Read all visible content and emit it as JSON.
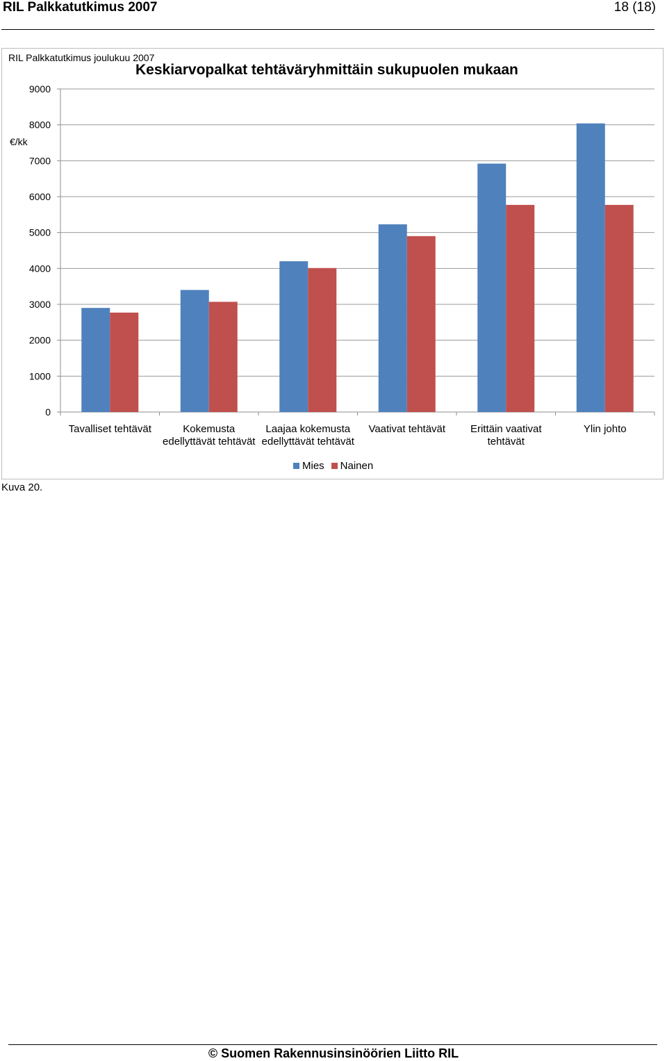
{
  "header": {
    "title": "RIL Palkkatutkimus 2007",
    "page": "18 (18)"
  },
  "chart_data": {
    "type": "bar",
    "source_note": "RIL Palkkatutkimus joulukuu 2007",
    "title": "Keskiarvopalkat tehtäväryhmittäin sukupuolen mukaan",
    "ylabel": "€/kk",
    "xlabel": "",
    "ylim": [
      0,
      9000
    ],
    "yticks": [
      0,
      1000,
      2000,
      3000,
      4000,
      5000,
      6000,
      7000,
      8000,
      9000
    ],
    "grid": true,
    "legend_position": "bottom-center",
    "categories": [
      [
        "Tavalliset tehtävät"
      ],
      [
        "Kokemusta",
        "edellyttävät tehtävät"
      ],
      [
        "Laajaa kokemusta",
        "edellyttävät tehtävät"
      ],
      [
        "Vaativat tehtävät"
      ],
      [
        "Erittäin vaativat",
        "tehtävät"
      ],
      [
        "Ylin johto"
      ]
    ],
    "series": [
      {
        "name": "Mies",
        "color": "#4f81bd",
        "values": [
          2900,
          3400,
          4200,
          5230,
          6920,
          8040
        ]
      },
      {
        "name": "Nainen",
        "color": "#c0504d",
        "values": [
          2770,
          3070,
          4010,
          4900,
          5770,
          5770
        ]
      }
    ]
  },
  "caption": "Kuva 20.",
  "footer": "© Suomen Rakennusinsinöörien Liitto RIL"
}
